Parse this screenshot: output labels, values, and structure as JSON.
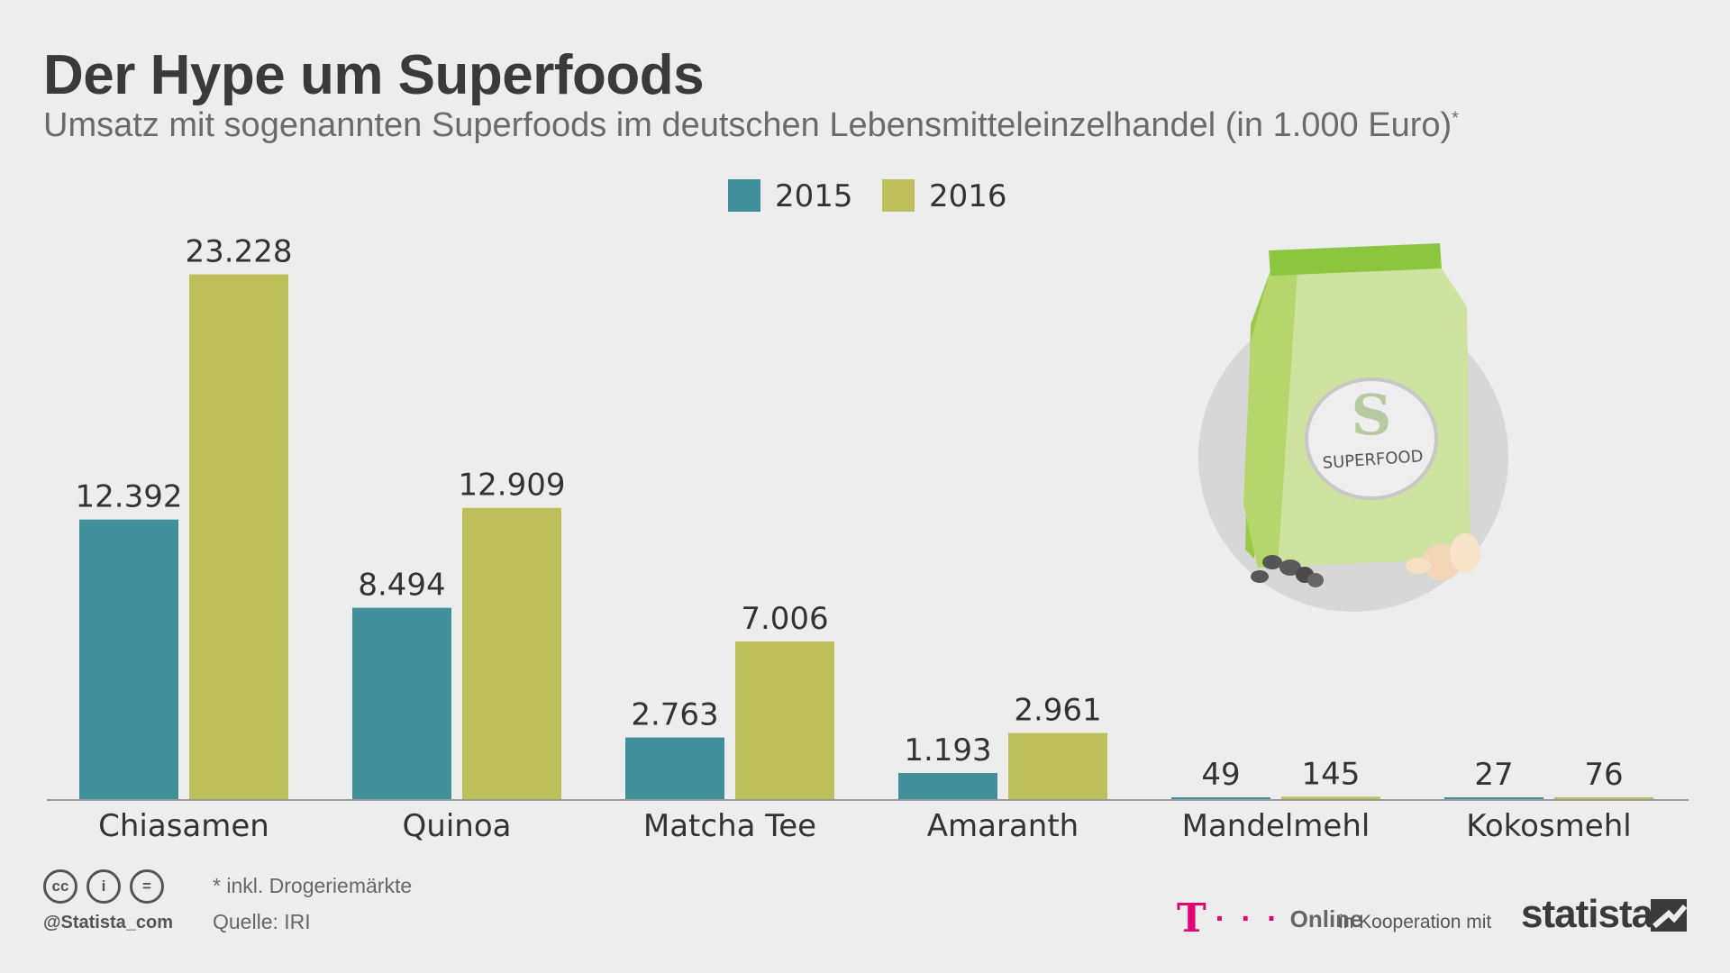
{
  "header": {
    "title": "Der Hype um Superfoods",
    "subtitle": "Umsatz mit sogenannten Superfoods im deutschen Lebensmitteleinzelhandel (in 1.000 Euro)",
    "subtitle_mark": "*"
  },
  "chart_data": {
    "type": "bar",
    "categories": [
      "Chiasamen",
      "Quinoa",
      "Matcha Tee",
      "Amaranth",
      "Mandelmehl",
      "Kokosmehl"
    ],
    "series": [
      {
        "name": "2015",
        "color": "#418f9b",
        "values": [
          12392,
          8494,
          2763,
          1193,
          49,
          27
        ],
        "labels": [
          "12.392",
          "8.494",
          "2.763",
          "1.193",
          "49",
          "27"
        ]
      },
      {
        "name": "2016",
        "color": "#bdbf5a",
        "values": [
          23228,
          12909,
          7006,
          2961,
          145,
          76
        ],
        "labels": [
          "23.228",
          "12.909",
          "7.006",
          "2.961",
          "145",
          "76"
        ]
      }
    ],
    "ylim": [
      0,
      25000
    ],
    "grid": false,
    "legend_position": "top-center"
  },
  "illustration": {
    "icon": "superfood-bag-icon",
    "badge_letter": "S",
    "badge_text": "SUPERFOOD"
  },
  "footer": {
    "cc_icons": [
      "cc",
      "i",
      "="
    ],
    "handle": "@Statista_com",
    "footnote": "* inkl. Drogeriemärkte",
    "source": "Quelle: IRI",
    "partner_logo": "T",
    "partner_dots": "· · ·",
    "partner_name": "Online",
    "cooperation": "in Kooperation mit",
    "brand": "statista"
  }
}
